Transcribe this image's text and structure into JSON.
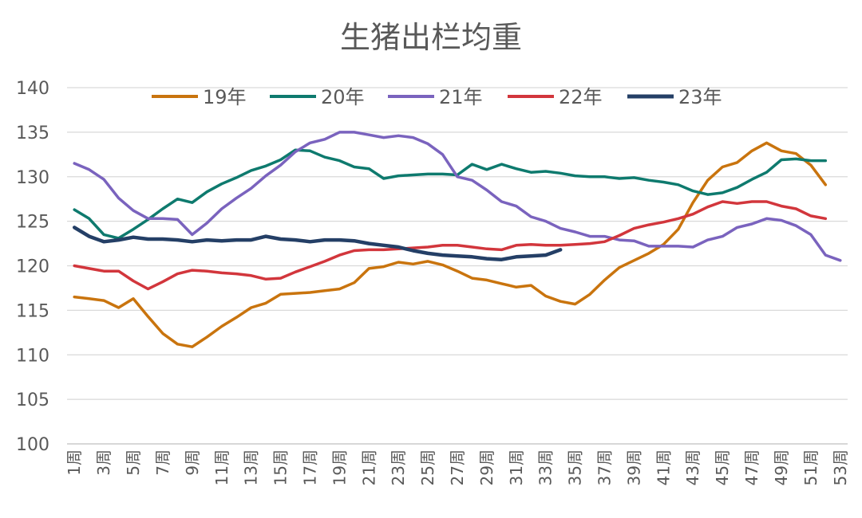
{
  "chart_data": {
    "type": "line",
    "title": "生猪出栏均重",
    "xlabel": "",
    "ylabel": "",
    "ylim": [
      100,
      140
    ],
    "yticks": [
      100,
      105,
      110,
      115,
      120,
      125,
      130,
      135,
      140
    ],
    "grid": true,
    "legend_position": "top",
    "categories": [
      "1周",
      "2周",
      "3周",
      "4周",
      "5周",
      "6周",
      "7周",
      "8周",
      "9周",
      "10周",
      "11周",
      "12周",
      "13周",
      "14周",
      "15周",
      "16周",
      "17周",
      "18周",
      "19周",
      "20周",
      "21周",
      "22周",
      "23周",
      "24周",
      "25周",
      "26周",
      "27周",
      "28周",
      "29周",
      "30周",
      "31周",
      "32周",
      "33周",
      "34周",
      "35周",
      "36周",
      "37周",
      "38周",
      "39周",
      "40周",
      "41周",
      "42周",
      "43周",
      "44周",
      "45周",
      "46周",
      "47周",
      "48周",
      "49周",
      "50周",
      "51周",
      "52周",
      "53周"
    ],
    "tick_labels": [
      "1周",
      "3周",
      "5周",
      "7周",
      "9周",
      "11周",
      "13周",
      "15周",
      "17周",
      "19周",
      "21周",
      "23周",
      "25周",
      "27周",
      "29周",
      "31周",
      "33周",
      "35周",
      "37周",
      "39周",
      "41周",
      "43周",
      "45周",
      "47周",
      "49周",
      "51周",
      "53周"
    ],
    "series": [
      {
        "name": "19年",
        "color": "#C9740E",
        "values": [
          116.5,
          116.3,
          116.1,
          115.3,
          116.3,
          114.3,
          112.4,
          111.2,
          110.9,
          112.0,
          113.2,
          114.2,
          115.3,
          115.8,
          116.8,
          116.9,
          117.0,
          117.2,
          117.4,
          118.1,
          119.7,
          119.9,
          120.4,
          120.2,
          120.5,
          120.1,
          119.4,
          118.6,
          118.4,
          118.0,
          117.6,
          117.8,
          116.6,
          116.0,
          115.7,
          116.8,
          118.4,
          119.8,
          120.6,
          121.4,
          122.4,
          124.1,
          127.1,
          129.6,
          131.1,
          131.6,
          132.9,
          133.8,
          132.9,
          132.6,
          131.3,
          129.1,
          null
        ]
      },
      {
        "name": "20年",
        "color": "#0E7A6E",
        "values": [
          126.3,
          125.3,
          123.5,
          123.1,
          124.1,
          125.2,
          126.4,
          127.5,
          127.1,
          128.3,
          129.2,
          129.9,
          130.7,
          131.2,
          131.9,
          133.0,
          132.9,
          132.2,
          131.8,
          131.1,
          130.9,
          129.8,
          130.1,
          130.2,
          130.3,
          130.3,
          130.2,
          131.4,
          130.8,
          131.4,
          130.9,
          130.5,
          130.6,
          130.4,
          130.1,
          130.0,
          130.0,
          129.8,
          129.9,
          129.6,
          129.4,
          129.1,
          128.4,
          128.0,
          128.2,
          128.8,
          129.7,
          130.5,
          131.9,
          132.0,
          131.8,
          131.8,
          null
        ]
      },
      {
        "name": "21年",
        "color": "#7A63BE",
        "values": [
          131.5,
          130.8,
          129.7,
          127.6,
          126.2,
          125.3,
          125.3,
          125.2,
          123.5,
          124.8,
          126.4,
          127.6,
          128.7,
          130.1,
          131.3,
          132.8,
          133.8,
          134.2,
          135.0,
          135.0,
          134.7,
          134.4,
          134.6,
          134.4,
          133.7,
          132.5,
          130.0,
          129.6,
          128.5,
          127.2,
          126.7,
          125.5,
          125.0,
          124.2,
          123.8,
          123.3,
          123.3,
          122.9,
          122.8,
          122.2,
          122.2,
          122.2,
          122.1,
          122.9,
          123.3,
          124.3,
          124.7,
          125.3,
          125.1,
          124.5,
          123.5,
          121.2,
          120.6
        ]
      },
      {
        "name": "22年",
        "color": "#D2363C",
        "values": [
          120.0,
          119.7,
          119.4,
          119.4,
          118.3,
          117.4,
          118.2,
          119.1,
          119.5,
          119.4,
          119.2,
          119.1,
          118.9,
          118.5,
          118.6,
          119.3,
          119.9,
          120.5,
          121.2,
          121.7,
          121.8,
          121.8,
          121.9,
          122.0,
          122.1,
          122.3,
          122.3,
          122.1,
          121.9,
          121.8,
          122.3,
          122.4,
          122.3,
          122.3,
          122.4,
          122.5,
          122.7,
          123.4,
          124.2,
          124.6,
          124.9,
          125.3,
          125.8,
          126.6,
          127.2,
          127.0,
          127.2,
          127.2,
          126.7,
          126.4,
          125.6,
          125.3,
          null
        ]
      },
      {
        "name": "23年",
        "color": "#243F66",
        "values": [
          124.3,
          123.3,
          122.7,
          122.9,
          123.2,
          123.0,
          123.0,
          122.9,
          122.7,
          122.9,
          122.8,
          122.9,
          122.9,
          123.3,
          123.0,
          122.9,
          122.7,
          122.9,
          122.9,
          122.8,
          122.5,
          122.3,
          122.1,
          121.7,
          121.4,
          121.2,
          121.1,
          121.0,
          120.8,
          120.7,
          121.0,
          121.1,
          121.2,
          121.8,
          null,
          null,
          null,
          null,
          null,
          null,
          null,
          null,
          null,
          null,
          null,
          null,
          null,
          null,
          null,
          null,
          null,
          null,
          null
        ]
      }
    ]
  }
}
